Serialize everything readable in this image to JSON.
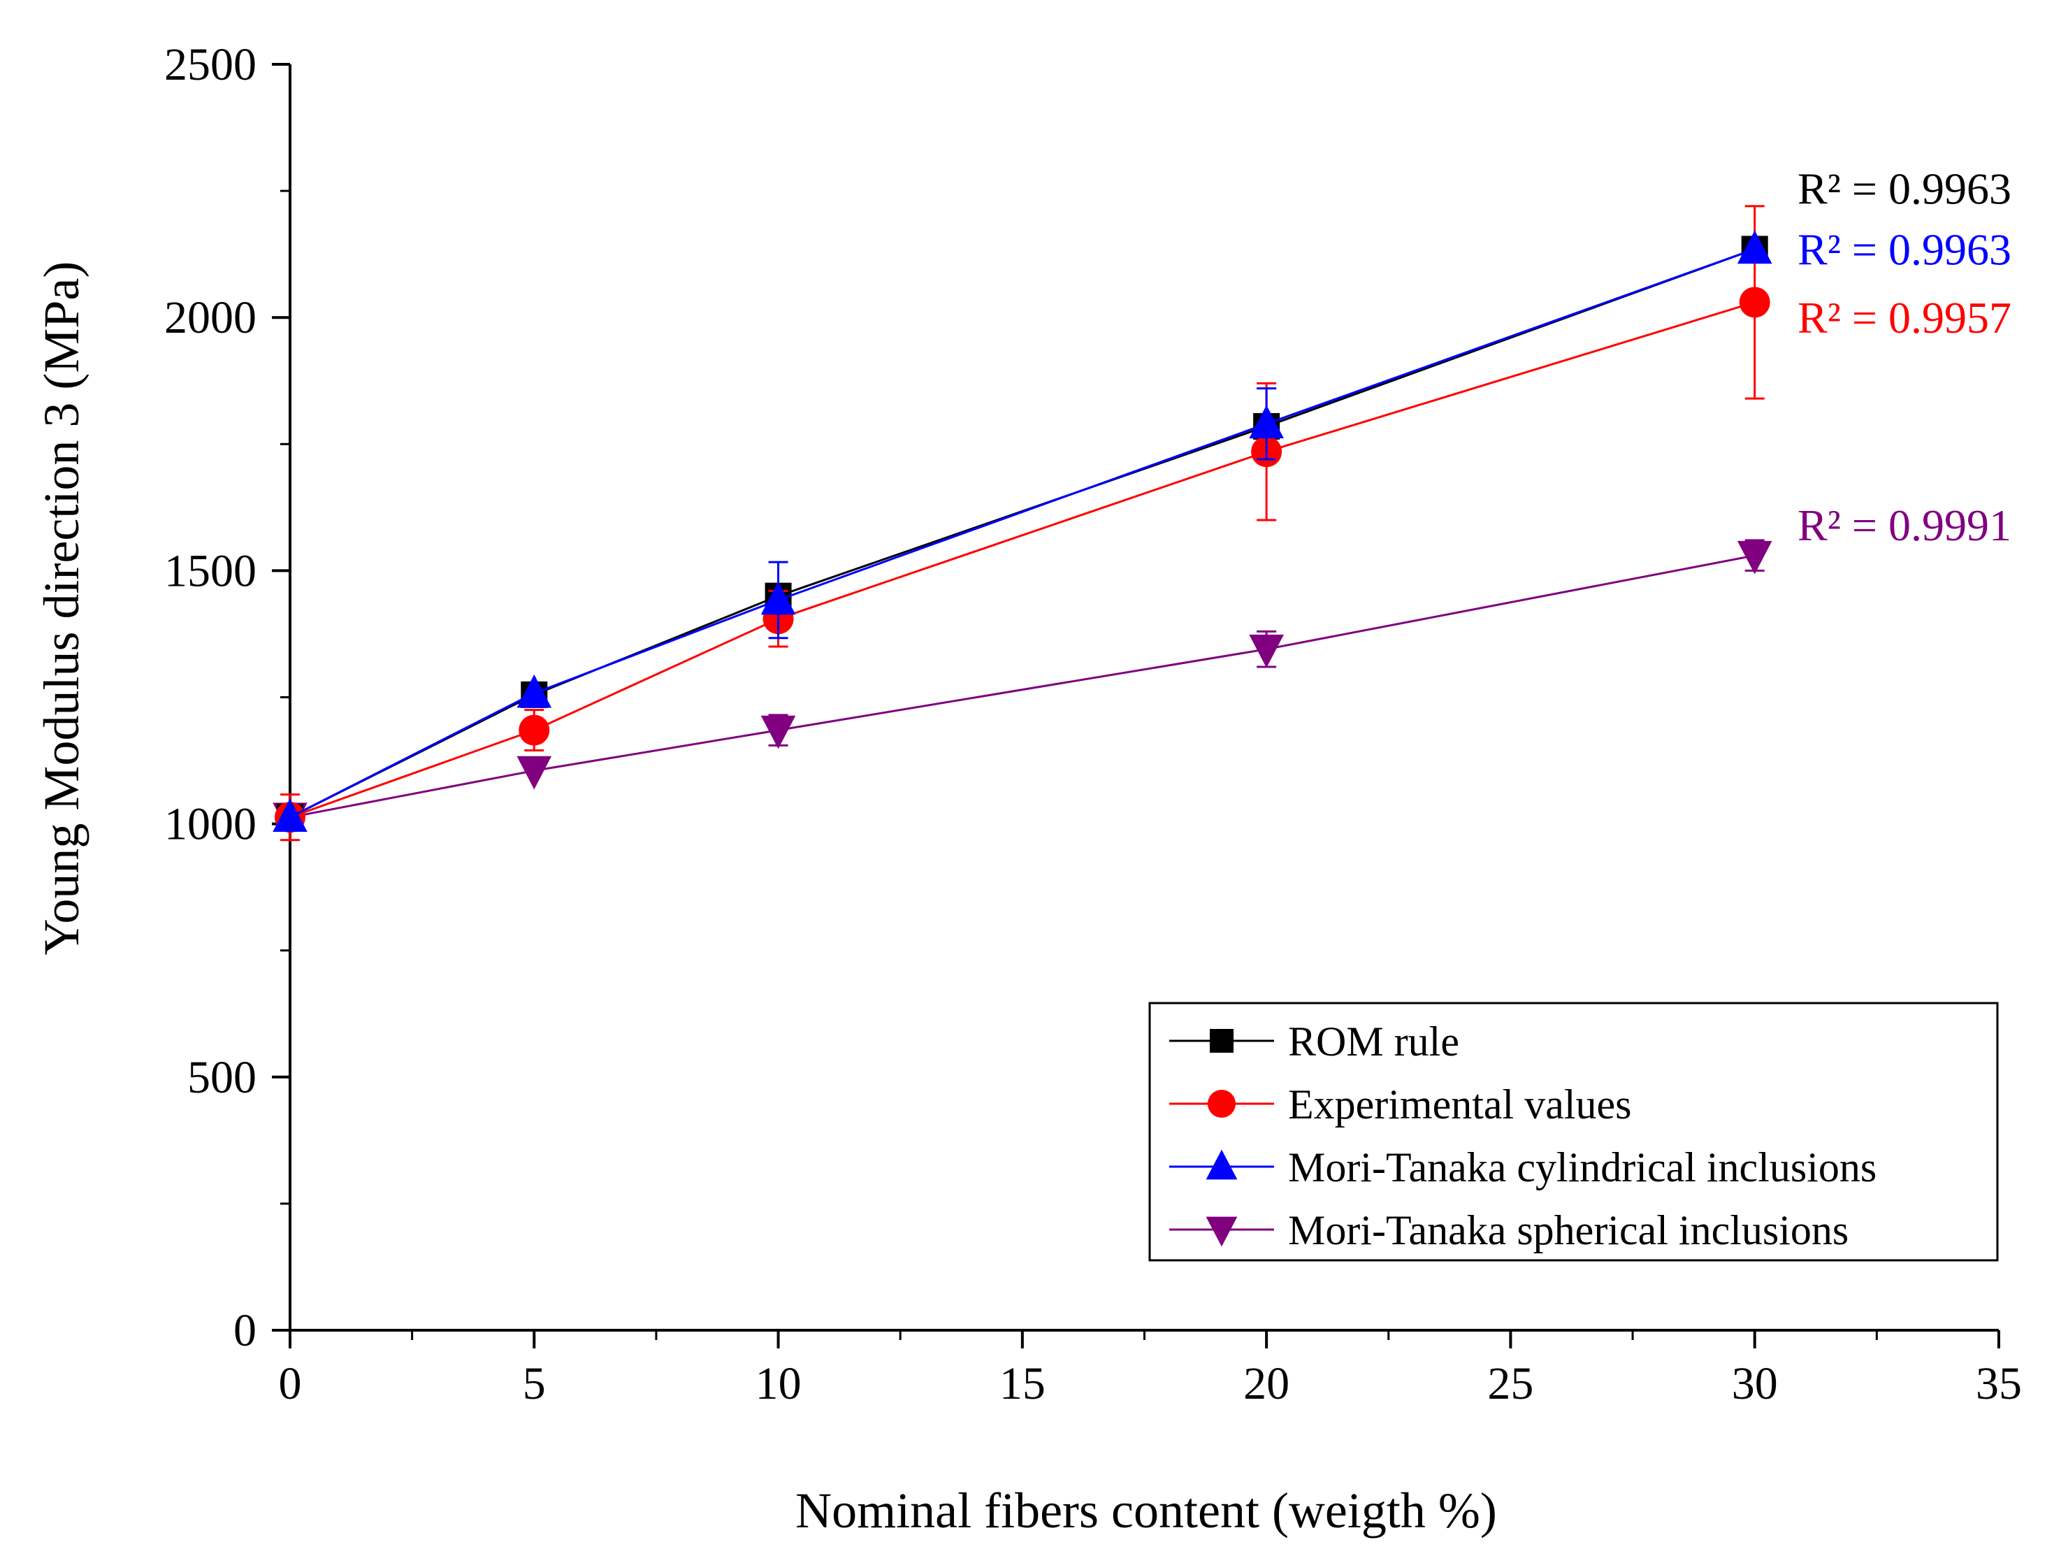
{
  "chart_data": {
    "type": "line",
    "title": "",
    "xlabel": "Nominal fibers content (weigth %)",
    "ylabel": "Young Modulus direction 3 (MPa)",
    "xlim": [
      0,
      35
    ],
    "ylim": [
      0,
      2500
    ],
    "xticks": [
      0,
      5,
      10,
      15,
      20,
      25,
      30,
      35
    ],
    "yticks": [
      0,
      500,
      1000,
      1500,
      2000,
      2500
    ],
    "grid": false,
    "legend_position": "bottom-right",
    "x": [
      0,
      5,
      10,
      20,
      30
    ],
    "series": [
      {
        "name": "ROM rule",
        "color": "#000000",
        "marker": "square",
        "values": [
          1013,
          1255,
          1450,
          1785,
          2135
        ],
        "errors": [
          0,
          0,
          0,
          0,
          0
        ]
      },
      {
        "name": "Experimental values",
        "color": "#ff0000",
        "marker": "circle",
        "values": [
          1013,
          1185,
          1405,
          1735,
          2030
        ],
        "errors": [
          45,
          40,
          55,
          135,
          190
        ]
      },
      {
        "name": "Mori-Tanaka cylindrical inclusions",
        "color": "#0000ff",
        "marker": "triangle-up",
        "values": [
          1013,
          1258,
          1442,
          1790,
          2135
        ],
        "errors": [
          0,
          0,
          75,
          70,
          0
        ]
      },
      {
        "name": "Mori-Tanaka spherical inclusions",
        "color": "#800080",
        "marker": "triangle-down",
        "values": [
          1013,
          1105,
          1185,
          1345,
          1530
        ],
        "errors": [
          0,
          0,
          30,
          35,
          30
        ]
      }
    ],
    "annotations": [
      {
        "text": "R² = 0.9963",
        "color": "#000000",
        "series": "ROM rule"
      },
      {
        "text": "R² = 0.9963",
        "color": "#0000ff",
        "series": "Mori-Tanaka cylindrical inclusions"
      },
      {
        "text": "R² = 0.9957",
        "color": "#ff0000",
        "series": "Experimental values"
      },
      {
        "text": "R² = 0.9991",
        "color": "#800080",
        "series": "Mori-Tanaka spherical inclusions"
      }
    ]
  }
}
